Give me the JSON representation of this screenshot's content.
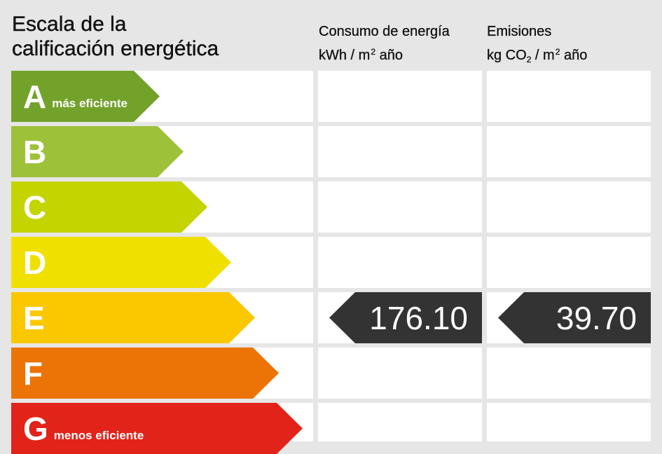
{
  "title": {
    "line1": "Escala de la",
    "line2": "calificación energética"
  },
  "columns": {
    "consumption": {
      "line1": "Consumo de energía",
      "unit_prefix": "kWh / m",
      "unit_sup": "2",
      "unit_suffix": " año"
    },
    "emissions": {
      "line1": "Emisiones",
      "unit_prefix": "kg CO",
      "unit_sub": "2",
      "unit_mid": " / m",
      "unit_sup": "2",
      "unit_suffix": " año"
    }
  },
  "bands": [
    {
      "letter": "A",
      "label": "más eficiente",
      "color": "#73a22b"
    },
    {
      "letter": "B",
      "label": "",
      "color": "#9dc23a"
    },
    {
      "letter": "C",
      "label": "",
      "color": "#c4d400"
    },
    {
      "letter": "D",
      "label": "",
      "color": "#f0e000"
    },
    {
      "letter": "E",
      "label": "",
      "color": "#fbc800"
    },
    {
      "letter": "F",
      "label": "",
      "color": "#ec7305"
    },
    {
      "letter": "G",
      "label": "menos eficiente",
      "color": "#e2231a"
    }
  ],
  "rating": {
    "band": "E",
    "consumption_value": "176.10",
    "emissions_value": "39.70",
    "marker_color": "#333333"
  }
}
